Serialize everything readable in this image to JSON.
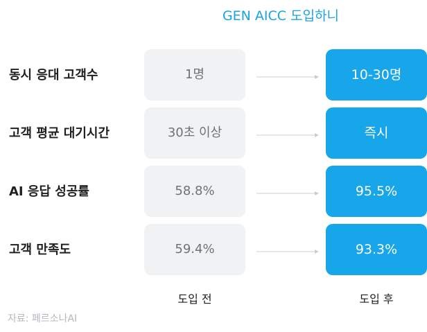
{
  "header": {
    "title": "GEN AICC 도입하니"
  },
  "rows": [
    {
      "label": "동시 응대 고객수",
      "before": "1명",
      "after": "10-30명"
    },
    {
      "label": "고객 평균 대기시간",
      "before": "30초 이상",
      "after": "즉시"
    },
    {
      "label": "AI 응답 성공률",
      "before": "58.8%",
      "after": "95.5%"
    },
    {
      "label": "고객 만족도",
      "before": "59.4%",
      "after": "93.3%"
    }
  ],
  "columns": {
    "before_label": "도입 전",
    "after_label": "도입 후"
  },
  "source": "자료: 페르소나AI",
  "colors": {
    "accent": "#18a6ea",
    "header_text": "#1aa3e3",
    "before_box": "#f1f2f4",
    "arrow": "#c9ccd1"
  }
}
